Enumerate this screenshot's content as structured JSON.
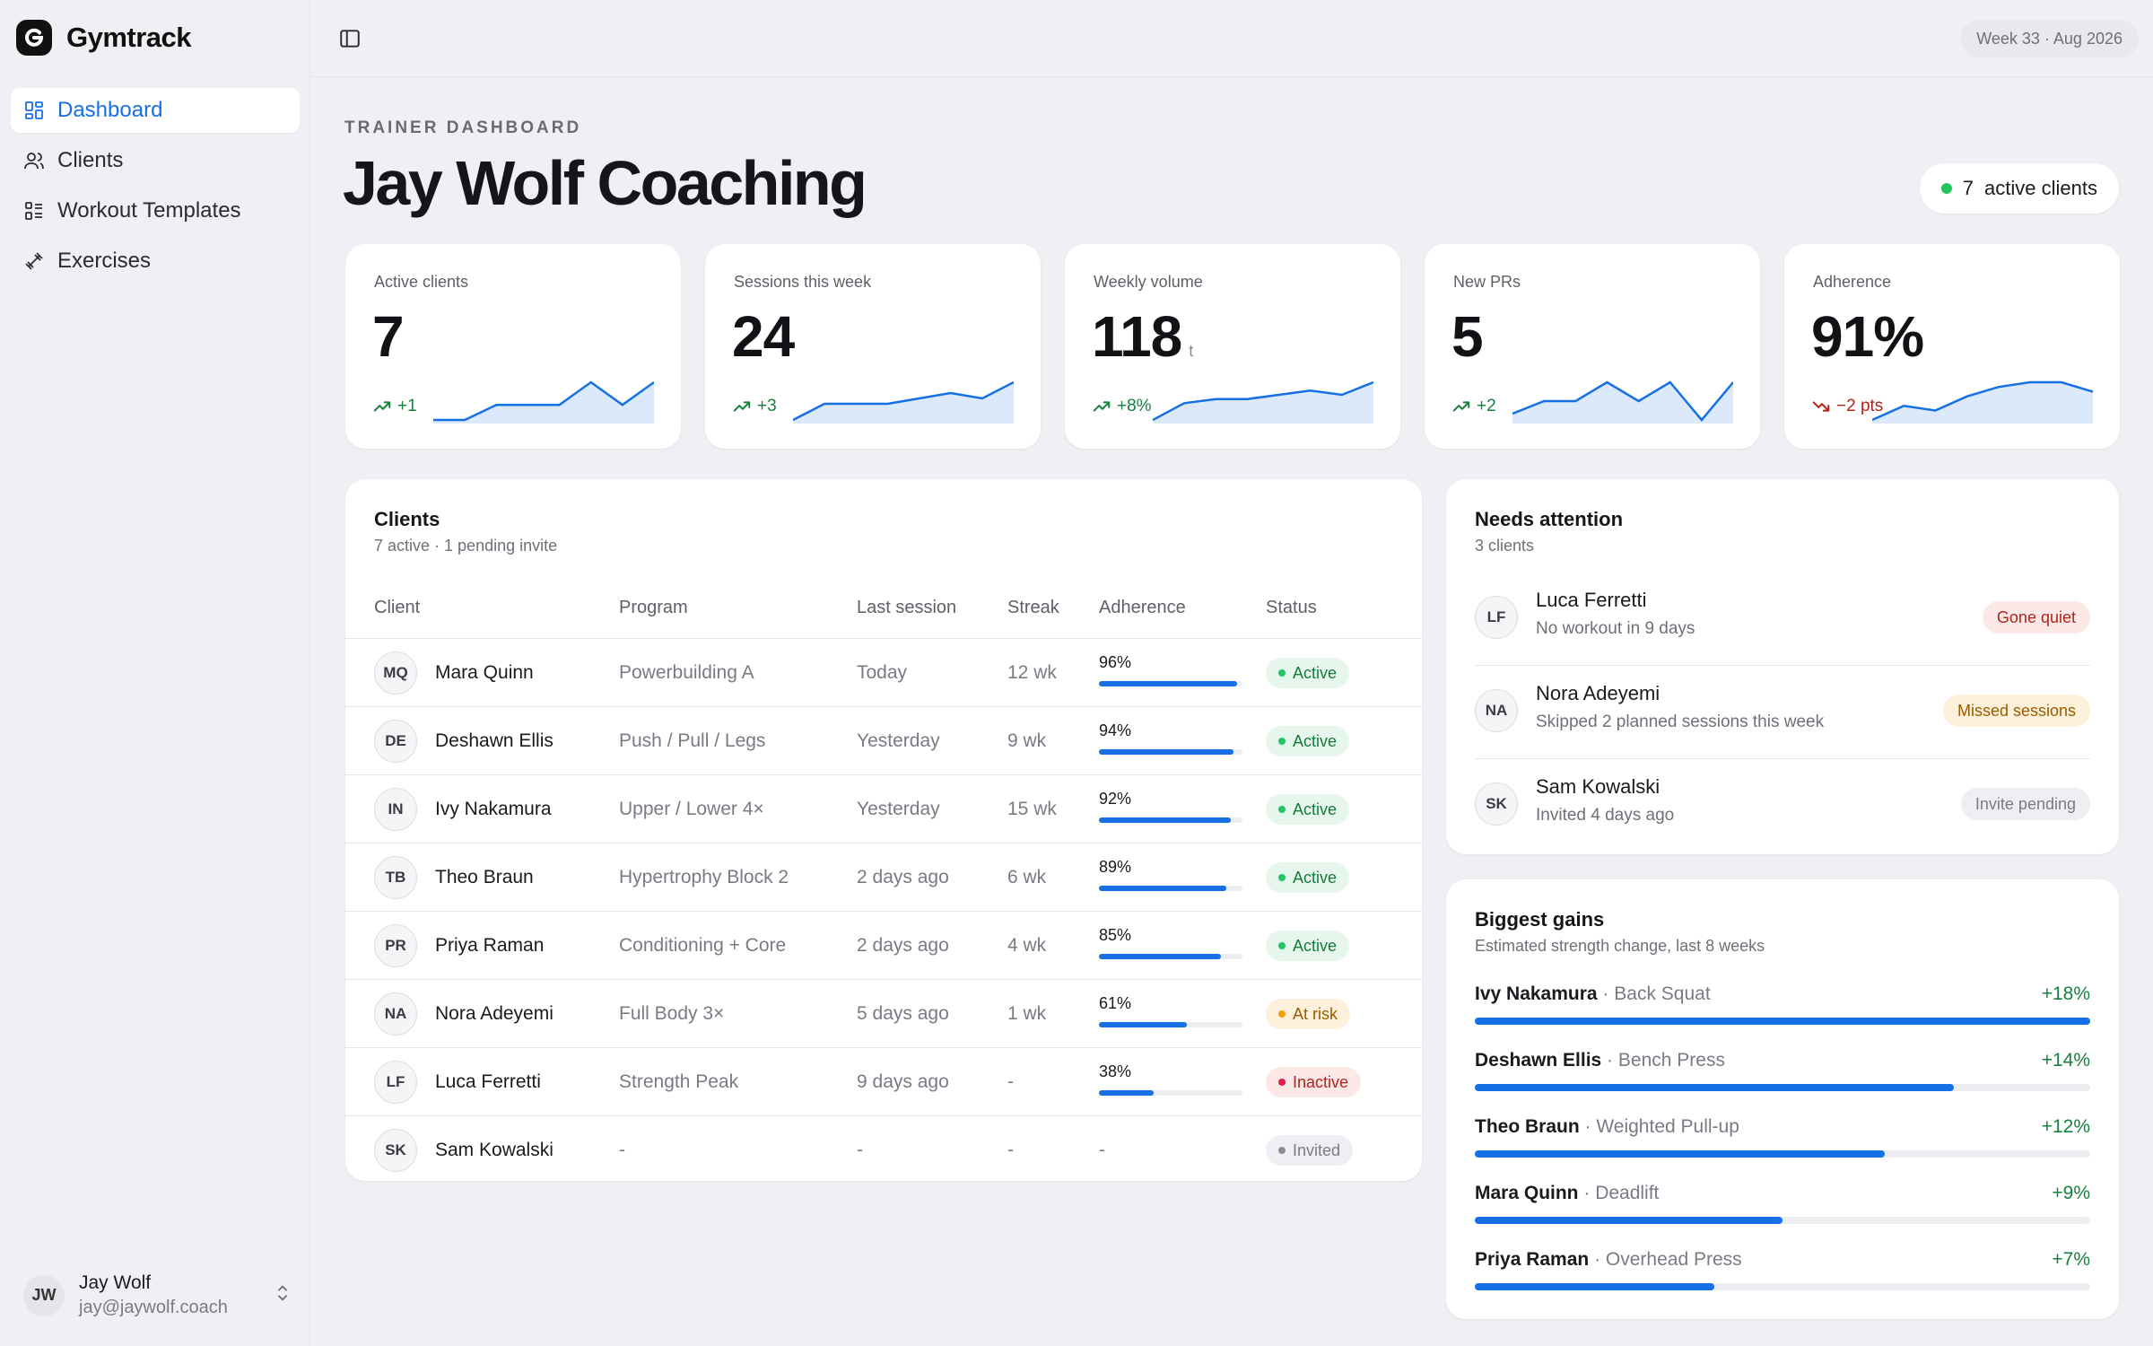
{
  "app": {
    "name": "Gymtrack",
    "week_label": "Week 33 · Aug 2026"
  },
  "sidebar": {
    "items": [
      {
        "label": "Dashboard",
        "icon": "grid-icon",
        "active": true
      },
      {
        "label": "Clients",
        "icon": "users-icon",
        "active": false
      },
      {
        "label": "Workout Templates",
        "icon": "template-list-icon",
        "active": false
      },
      {
        "label": "Exercises",
        "icon": "dumbbell-icon",
        "active": false
      }
    ],
    "user": {
      "initials": "JW",
      "name": "Jay Wolf",
      "email": "jay@jaywolf.coach"
    }
  },
  "header": {
    "eyebrow": "TRAINER DASHBOARD",
    "title": "Jay Wolf Coaching",
    "active_count": "7",
    "active_label": "active clients"
  },
  "stats": [
    {
      "label": "Active clients",
      "value": "7",
      "unit": "",
      "delta": "+1",
      "trend": "up",
      "spark": [
        2,
        2,
        4,
        4,
        4,
        7,
        4,
        7
      ]
    },
    {
      "label": "Sessions this week",
      "value": "24",
      "unit": "",
      "delta": "+3",
      "trend": "up",
      "spark": [
        1,
        4,
        4,
        4,
        5,
        6,
        5,
        8
      ]
    },
    {
      "label": "Weekly volume",
      "value": "118",
      "unit": "t",
      "delta": "+8%",
      "trend": "up",
      "spark": [
        1,
        5,
        6,
        6,
        7,
        8,
        7,
        10
      ]
    },
    {
      "label": "New PRs",
      "value": "5",
      "unit": "",
      "delta": "+2",
      "trend": "up",
      "spark": [
        1,
        3,
        3,
        6,
        3,
        6,
        0,
        6
      ]
    },
    {
      "label": "Adherence",
      "value": "91%",
      "unit": "",
      "delta": "−2 pts",
      "trend": "down",
      "spark": [
        1,
        4,
        3,
        6,
        8,
        9,
        9,
        7
      ]
    }
  ],
  "clients": {
    "title": "Clients",
    "subtitle": "7 active · 1 pending invite",
    "columns": [
      "Client",
      "Program",
      "Last session",
      "Streak",
      "Adherence",
      "Status"
    ],
    "rows": [
      {
        "initials": "MQ",
        "name": "Mara Quinn",
        "program": "Powerbuilding A",
        "last": "Today",
        "streak": "12 wk",
        "adherence": "96%",
        "adherence_pct": 96,
        "status": "Active",
        "status_kind": "active"
      },
      {
        "initials": "DE",
        "name": "Deshawn Ellis",
        "program": "Push / Pull / Legs",
        "last": "Yesterday",
        "streak": "9 wk",
        "adherence": "94%",
        "adherence_pct": 94,
        "status": "Active",
        "status_kind": "active"
      },
      {
        "initials": "IN",
        "name": "Ivy Nakamura",
        "program": "Upper / Lower 4×",
        "last": "Yesterday",
        "streak": "15 wk",
        "adherence": "92%",
        "adherence_pct": 92,
        "status": "Active",
        "status_kind": "active"
      },
      {
        "initials": "TB",
        "name": "Theo Braun",
        "program": "Hypertrophy Block 2",
        "last": "2 days ago",
        "streak": "6 wk",
        "adherence": "89%",
        "adherence_pct": 89,
        "status": "Active",
        "status_kind": "active"
      },
      {
        "initials": "PR",
        "name": "Priya Raman",
        "program": "Conditioning + Core",
        "last": "2 days ago",
        "streak": "4 wk",
        "adherence": "85%",
        "adherence_pct": 85,
        "status": "Active",
        "status_kind": "active"
      },
      {
        "initials": "NA",
        "name": "Nora Adeyemi",
        "program": "Full Body 3×",
        "last": "5 days ago",
        "streak": "1 wk",
        "adherence": "61%",
        "adherence_pct": 61,
        "status": "At risk",
        "status_kind": "risk"
      },
      {
        "initials": "LF",
        "name": "Luca Ferretti",
        "program": "Strength Peak",
        "last": "9 days ago",
        "streak": "-",
        "adherence": "38%",
        "adherence_pct": 38,
        "status": "Inactive",
        "status_kind": "inactive"
      },
      {
        "initials": "SK",
        "name": "Sam Kowalski",
        "program": "-",
        "last": "-",
        "streak": "-",
        "adherence": "-",
        "adherence_pct": null,
        "status": "Invited",
        "status_kind": "invited"
      }
    ]
  },
  "attention": {
    "title": "Needs attention",
    "subtitle": "3 clients",
    "items": [
      {
        "initials": "LF",
        "name": "Luca Ferretti",
        "desc": "No workout in 9 days",
        "badge": "Gone quiet",
        "kind": "quiet"
      },
      {
        "initials": "NA",
        "name": "Nora Adeyemi",
        "desc": "Skipped 2 planned sessions this week",
        "badge": "Missed sessions",
        "kind": "missed"
      },
      {
        "initials": "SK",
        "name": "Sam Kowalski",
        "desc": "Invited 4 days ago",
        "badge": "Invite pending",
        "kind": "invite"
      }
    ]
  },
  "gains": {
    "title": "Biggest gains",
    "subtitle": "Estimated strength change, last 8 weeks",
    "items": [
      {
        "name": "Ivy Nakamura",
        "exercise": "Back Squat",
        "pct": "+18%",
        "value": 18
      },
      {
        "name": "Deshawn Ellis",
        "exercise": "Bench Press",
        "pct": "+14%",
        "value": 14
      },
      {
        "name": "Theo Braun",
        "exercise": "Weighted Pull-up",
        "pct": "+12%",
        "value": 12
      },
      {
        "name": "Mara Quinn",
        "exercise": "Deadlift",
        "pct": "+9%",
        "value": 9
      },
      {
        "name": "Priya Raman",
        "exercise": "Overhead Press",
        "pct": "+7%",
        "value": 7
      }
    ]
  }
}
